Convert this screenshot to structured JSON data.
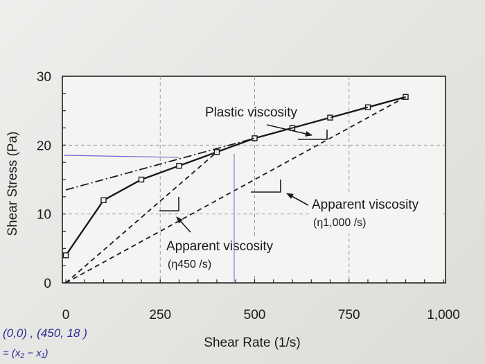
{
  "chart_data": {
    "type": "line",
    "title": "",
    "xlabel": "Shear Rate (1/s)",
    "ylabel": "Shear Stress (Pa)",
    "xlim": [
      0,
      1000
    ],
    "ylim": [
      0,
      30
    ],
    "x_ticks": [
      "0",
      "250",
      "500",
      "750",
      "1,000"
    ],
    "y_ticks": [
      "0",
      "10",
      "20",
      "30"
    ],
    "grid": true,
    "series": [
      {
        "name": "",
        "style": "solid-with-square-markers",
        "x": [
          0,
          100,
          200,
          300,
          400,
          500,
          600,
          700,
          800,
          900
        ],
        "y": [
          4,
          12,
          15,
          17,
          19,
          21,
          22.5,
          24,
          25.5,
          27
        ]
      },
      {
        "name": "",
        "style": "dash-dot",
        "x": [
          0,
          900
        ],
        "y": [
          13.5,
          27
        ]
      },
      {
        "name": "",
        "style": "dashed",
        "x": [
          0,
          400
        ],
        "y": [
          0,
          19
        ]
      },
      {
        "name": "",
        "style": "dashed",
        "x": [
          0,
          900
        ],
        "y": [
          0,
          27
        ]
      }
    ],
    "annotations": [
      {
        "id": "plastic",
        "text": "Plastic viscosity"
      },
      {
        "id": "app1000",
        "text": "Apparent viscosity",
        "subtext": "(η1,000 /s)"
      },
      {
        "id": "app450",
        "text": "Apparent viscosity",
        "subtext": "(η450 /s)"
      }
    ]
  },
  "handwriting": {
    "line1": "(0,0) , (450, 18 )",
    "line2": "= (x₂ − x₁)"
  }
}
